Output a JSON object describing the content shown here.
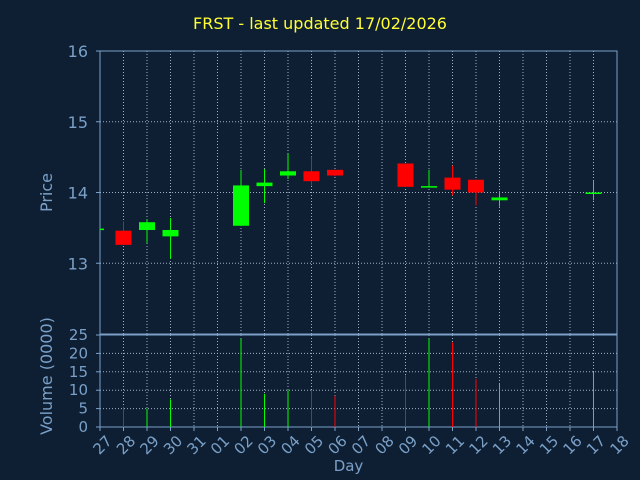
{
  "chart_data": {
    "type": "candlestick",
    "title": "FRST - last updated 17/02/2026",
    "xlabel": "Day",
    "price_panel": {
      "ylabel": "Price",
      "ylim": [
        12.0,
        16.0
      ],
      "yticks": [
        13,
        14,
        15,
        16
      ]
    },
    "volume_panel": {
      "ylabel": "Volume (0000)",
      "ylim": [
        0,
        25
      ],
      "yticks": [
        0,
        5,
        10,
        15,
        20,
        25
      ]
    },
    "categories": [
      "27",
      "28",
      "29",
      "30",
      "31",
      "01",
      "02",
      "03",
      "04",
      "05",
      "06",
      "07",
      "08",
      "09",
      "10",
      "11",
      "12",
      "13",
      "14",
      "15",
      "16",
      "17",
      "18"
    ],
    "candles": [
      {
        "day": "27",
        "open": 13.49,
        "high": 13.49,
        "low": 13.49,
        "close": 13.49,
        "volume": 0
      },
      {
        "day": "28",
        "open": 13.46,
        "high": 13.59,
        "low": 13.26,
        "close": 13.26,
        "volume": 5.5
      },
      {
        "day": "29",
        "open": 13.47,
        "high": 13.62,
        "low": 13.29,
        "close": 13.58,
        "volume": 5
      },
      {
        "day": "30",
        "open": 13.38,
        "high": 13.64,
        "low": 13.06,
        "close": 13.47,
        "volume": 7.5
      },
      {
        "day": "02",
        "open": 13.53,
        "high": 14.32,
        "low": 13.53,
        "close": 14.1,
        "volume": 24
      },
      {
        "day": "03",
        "open": 14.09,
        "high": 14.33,
        "low": 13.85,
        "close": 14.14,
        "volume": 9
      },
      {
        "day": "04",
        "open": 14.24,
        "high": 14.55,
        "low": 14.19,
        "close": 14.3,
        "volume": 10
      },
      {
        "day": "05",
        "open": 14.3,
        "high": 14.51,
        "low": 14.1,
        "close": 14.16,
        "volume": 10
      },
      {
        "day": "06",
        "open": 14.32,
        "high": 14.32,
        "low": 14.23,
        "close": 14.24,
        "volume": 8.5
      },
      {
        "day": "09",
        "open": 14.41,
        "high": 14.41,
        "low": 14.08,
        "close": 14.08,
        "volume": 14
      },
      {
        "day": "10",
        "open": 14.08,
        "high": 14.32,
        "low": 14.08,
        "close": 14.09,
        "volume": 24
      },
      {
        "day": "11",
        "open": 14.21,
        "high": 14.38,
        "low": 13.96,
        "close": 14.04,
        "volume": 23
      },
      {
        "day": "12",
        "open": 14.18,
        "high": 14.18,
        "low": 13.82,
        "close": 14.0,
        "volume": 13
      },
      {
        "day": "13",
        "open": 13.89,
        "high": 14.02,
        "low": 13.8,
        "close": 13.93,
        "volume": 12
      },
      {
        "day": "17",
        "open": 13.99,
        "high": 14.16,
        "low": 13.89,
        "close": 14.0,
        "volume": 15
      }
    ],
    "grid": true,
    "colors": {
      "background": "#0f1f33",
      "axis": "#7aa0c8",
      "grid": "#9fb0c4",
      "title": "#ffff33",
      "up": "#00ff00",
      "down": "#ff0000"
    }
  }
}
